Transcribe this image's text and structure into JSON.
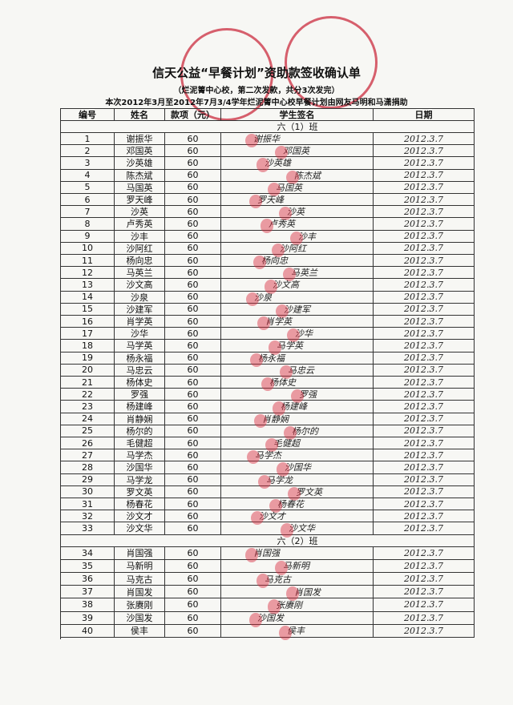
{
  "title": "信天公益“早餐计划”资助款签收确认单",
  "subtitle": "（烂泥箐中心校，第二次发款，共分3次发完）",
  "note": "本次2012年3月至2012年7月3/4学年烂泥箐中心校早餐计划由网友马明和马潇捐助",
  "headers": [
    "编号",
    "姓名",
    "款项（元）",
    "学生签名",
    "日期"
  ],
  "sections": [
    {
      "label": "六（1）班",
      "rows": [
        [
          1,
          "谢振华",
          60,
          "谢振华",
          "2012.3.7"
        ],
        [
          2,
          "邓国英",
          60,
          "邓国英",
          "2012.3.7"
        ],
        [
          3,
          "沙英雄",
          60,
          "沙英雄",
          "2012.3.7"
        ],
        [
          4,
          "陈杰斌",
          60,
          "陈杰斌",
          "2012.3.7"
        ],
        [
          5,
          "马国英",
          60,
          "马国英",
          "2012.3.7"
        ],
        [
          6,
          "罗天峰",
          60,
          "罗天峰",
          "2012.3.7"
        ],
        [
          7,
          "沙英",
          60,
          "沙英",
          "2012.3.7"
        ],
        [
          8,
          "卢秀英",
          60,
          "卢秀英",
          "2012.3.7"
        ],
        [
          9,
          "沙丰",
          60,
          "沙丰",
          "2012.3.7"
        ],
        [
          10,
          "沙阿红",
          60,
          "沙阿红",
          "2012.3.7"
        ],
        [
          11,
          "杨向忠",
          60,
          "杨向忠",
          "2012.3.7"
        ],
        [
          12,
          "马英兰",
          60,
          "马英兰",
          "2012.3.7"
        ],
        [
          13,
          "沙文高",
          60,
          "沙文高",
          "2012.3.7"
        ],
        [
          14,
          "沙泉",
          60,
          "沙泉",
          "2012.3.7"
        ],
        [
          15,
          "沙建军",
          60,
          "沙建军",
          "2012.3.7"
        ],
        [
          16,
          "肖学英",
          60,
          "肖学英",
          "2012.3.7"
        ],
        [
          17,
          "沙华",
          60,
          "沙华",
          "2012.3.7"
        ],
        [
          18,
          "马学英",
          60,
          "马学英",
          "2012.3.7"
        ],
        [
          19,
          "杨永福",
          60,
          "杨永福",
          "2012.3.7"
        ],
        [
          20,
          "马忠云",
          60,
          "马忠云",
          "2012.3.7"
        ],
        [
          21,
          "杨体史",
          60,
          "杨体史",
          "2012.3.7"
        ],
        [
          22,
          "罗强",
          60,
          "罗强",
          "2012.3.7"
        ],
        [
          23,
          "杨建峰",
          60,
          "杨建峰",
          "2012.3.7"
        ],
        [
          24,
          "肖静娴",
          60,
          "肖静娴",
          "2012.3.7"
        ],
        [
          25,
          "杨尔的",
          60,
          "杨尔的",
          "2012.3.7"
        ],
        [
          26,
          "毛健超",
          60,
          "毛健超",
          "2012.3.7"
        ],
        [
          27,
          "马学杰",
          60,
          "马学杰",
          "2012.3.7"
        ],
        [
          28,
          "沙国华",
          60,
          "沙国华",
          "2012.3.7"
        ],
        [
          29,
          "马学龙",
          60,
          "马学龙",
          "2012.3.7"
        ],
        [
          30,
          "罗文英",
          60,
          "罗文英",
          "2012.3.7"
        ],
        [
          31,
          "杨春花",
          60,
          "杨春花",
          "2012.3.7"
        ],
        [
          32,
          "沙文才",
          60,
          "沙文才",
          "2012.3.7"
        ],
        [
          33,
          "沙文华",
          60,
          "沙文华",
          "2012.3.7"
        ]
      ]
    },
    {
      "label": "六（2）班",
      "rows": [
        [
          34,
          "肖国强",
          60,
          "肖国强",
          "2012.3.7"
        ],
        [
          35,
          "马新明",
          60,
          "马新明",
          "2012.3.7"
        ],
        [
          36,
          "马克古",
          60,
          "马克古",
          "2012.3.7"
        ],
        [
          37,
          "肖国发",
          60,
          "肖国发",
          "2012.3.7"
        ],
        [
          38,
          "张赓刚",
          60,
          "张赓刚",
          "2012.3.7"
        ],
        [
          39,
          "沙国发",
          60,
          "沙国发",
          "2012.3.7"
        ],
        [
          40,
          "侯丰",
          60,
          "侯丰",
          "2012.3.7"
        ]
      ]
    }
  ]
}
